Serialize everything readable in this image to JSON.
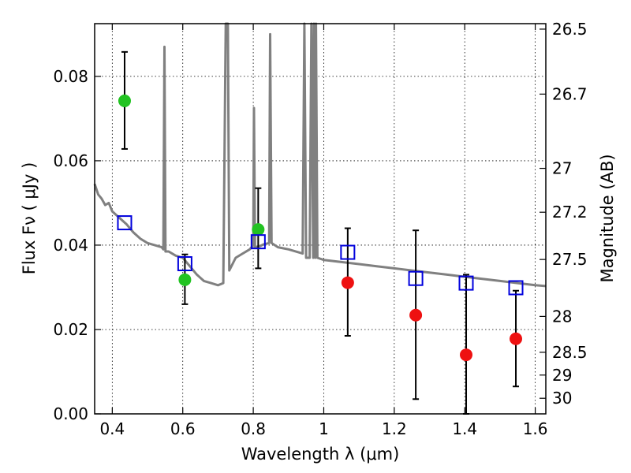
{
  "chart_data": {
    "type": "scatter",
    "xlabel": "Wavelength  λ (μm)",
    "ylabel": "Flux  Fν  ( μJy )",
    "ylabel_right": "Magnitude (AB)",
    "xlim": [
      0.35,
      1.63
    ],
    "ylim": [
      0.0,
      0.0925
    ],
    "grid": true,
    "x_ticks": [
      0.4,
      0.6,
      0.8,
      1.0,
      1.2,
      1.4,
      1.6
    ],
    "x_tick_labels": [
      "0.4",
      "0.6",
      "0.8",
      "1",
      "1.2",
      "1.4",
      "1.6"
    ],
    "y_ticks": [
      0.0,
      0.02,
      0.04,
      0.06,
      0.08
    ],
    "y_tick_labels": [
      "0.00",
      "0.02",
      "0.04",
      "0.06",
      "0.08"
    ],
    "right_ticks": [
      {
        "flux": 0.0912,
        "label": "26.5"
      },
      {
        "flux": 0.0758,
        "label": "26.7"
      },
      {
        "flux": 0.0582,
        "label": "27"
      },
      {
        "flux": 0.0478,
        "label": "27.2"
      },
      {
        "flux": 0.0366,
        "label": "27.5"
      },
      {
        "flux": 0.0231,
        "label": "28"
      },
      {
        "flux": 0.0146,
        "label": "28.5"
      },
      {
        "flux": 0.0092,
        "label": "29"
      },
      {
        "flux": 0.0037,
        "label": "30"
      }
    ],
    "model_spectrum": {
      "color": "#808080",
      "points": [
        [
          0.35,
          0.0545
        ],
        [
          0.36,
          0.052
        ],
        [
          0.37,
          0.051
        ],
        [
          0.38,
          0.0495
        ],
        [
          0.39,
          0.05
        ],
        [
          0.4,
          0.048
        ],
        [
          0.42,
          0.0465
        ],
        [
          0.44,
          0.045
        ],
        [
          0.46,
          0.043
        ],
        [
          0.48,
          0.0415
        ],
        [
          0.5,
          0.0405
        ],
        [
          0.52,
          0.04
        ],
        [
          0.54,
          0.0395
        ],
        [
          0.545,
          0.039
        ],
        [
          0.548,
          0.087
        ],
        [
          0.551,
          0.0385
        ],
        [
          0.56,
          0.0385
        ],
        [
          0.58,
          0.0375
        ],
        [
          0.6,
          0.037
        ],
        [
          0.62,
          0.035
        ],
        [
          0.64,
          0.033
        ],
        [
          0.66,
          0.0315
        ],
        [
          0.68,
          0.031
        ],
        [
          0.7,
          0.0305
        ],
        [
          0.715,
          0.031
        ],
        [
          0.722,
          0.0925
        ],
        [
          0.728,
          0.0925
        ],
        [
          0.732,
          0.034
        ],
        [
          0.75,
          0.037
        ],
        [
          0.77,
          0.038
        ],
        [
          0.79,
          0.039
        ],
        [
          0.8,
          0.04
        ],
        [
          0.802,
          0.0725
        ],
        [
          0.805,
          0.0395
        ],
        [
          0.82,
          0.0398
        ],
        [
          0.83,
          0.0402
        ],
        [
          0.845,
          0.0405
        ],
        [
          0.848,
          0.09
        ],
        [
          0.852,
          0.0405
        ],
        [
          0.87,
          0.0395
        ],
        [
          0.9,
          0.039
        ],
        [
          0.94,
          0.038
        ],
        [
          0.945,
          0.0925
        ],
        [
          0.95,
          0.037
        ],
        [
          0.96,
          0.037
        ],
        [
          0.965,
          0.0925
        ],
        [
          0.97,
          0.037
        ],
        [
          0.972,
          0.0925
        ],
        [
          0.976,
          0.037
        ],
        [
          0.978,
          0.0925
        ],
        [
          0.982,
          0.037
        ],
        [
          1.0,
          0.0365
        ],
        [
          1.05,
          0.036
        ],
        [
          1.1,
          0.0355
        ],
        [
          1.15,
          0.035
        ],
        [
          1.2,
          0.0345
        ],
        [
          1.25,
          0.034
        ],
        [
          1.3,
          0.0335
        ],
        [
          1.35,
          0.033
        ],
        [
          1.4,
          0.0325
        ],
        [
          1.45,
          0.032
        ],
        [
          1.5,
          0.0315
        ],
        [
          1.55,
          0.031
        ],
        [
          1.6,
          0.0305
        ],
        [
          1.63,
          0.0303
        ]
      ]
    },
    "series": [
      {
        "marker": "circle",
        "color": "#22c322",
        "points": [
          {
            "x": 0.435,
            "y": 0.0742,
            "yerr_low": 0.0628,
            "yerr_high": 0.0858
          },
          {
            "x": 0.606,
            "y": 0.0318,
            "yerr_low": 0.026,
            "yerr_high": 0.0378
          },
          {
            "x": 0.814,
            "y": 0.0437,
            "yerr_low": 0.0345,
            "yerr_high": 0.0535
          }
        ]
      },
      {
        "marker": "circle",
        "color": "#ee1111",
        "points": [
          {
            "x": 1.068,
            "y": 0.0311,
            "yerr_low": 0.0185,
            "yerr_high": 0.044
          },
          {
            "x": 1.261,
            "y": 0.0234,
            "yerr_low": 0.0035,
            "yerr_high": 0.0435
          },
          {
            "x": 1.404,
            "y": 0.014,
            "yerr_low": 0.0,
            "yerr_high": 0.033
          },
          {
            "x": 1.545,
            "y": 0.0178,
            "yerr_low": 0.0065,
            "yerr_high": 0.0292
          }
        ]
      },
      {
        "marker": "square",
        "color": "#0000dd",
        "points": [
          {
            "x": 0.435,
            "y": 0.0453
          },
          {
            "x": 0.606,
            "y": 0.0356
          },
          {
            "x": 0.814,
            "y": 0.0408
          },
          {
            "x": 1.068,
            "y": 0.0383
          },
          {
            "x": 1.261,
            "y": 0.0321
          },
          {
            "x": 1.404,
            "y": 0.031
          },
          {
            "x": 1.545,
            "y": 0.0299
          }
        ]
      }
    ]
  }
}
